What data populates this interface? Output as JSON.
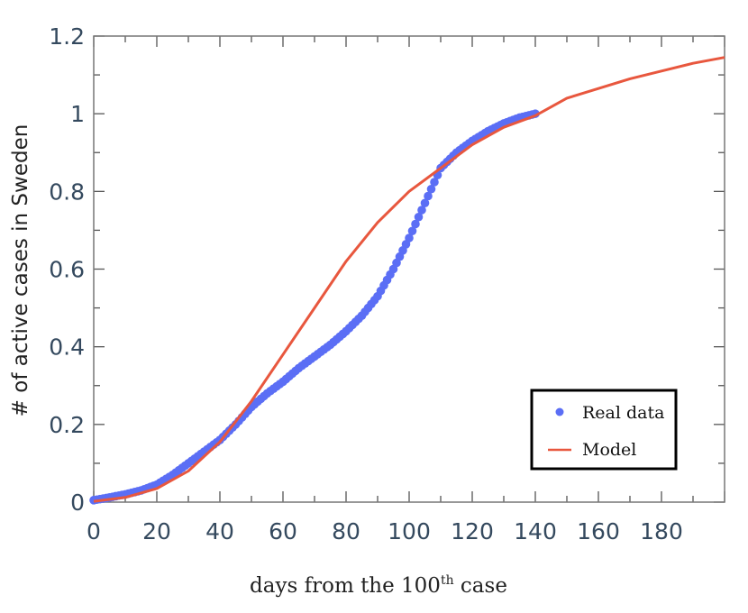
{
  "chart_data": {
    "type": "line",
    "xlabel": "days from the 100",
    "xlabel_sup": "th",
    "xlabel_suffix": " case",
    "ylabel": "# of active cases in Sweden",
    "xlim": [
      0,
      200
    ],
    "ylim": [
      0,
      1.2
    ],
    "x_ticks": [
      0,
      20,
      40,
      60,
      80,
      100,
      120,
      140,
      160,
      180
    ],
    "x_tick_labels": [
      "0",
      "20",
      "40",
      "60",
      "80",
      "100",
      "120",
      "140",
      "160",
      "180"
    ],
    "y_ticks": [
      0,
      0.2,
      0.4,
      0.6,
      0.8,
      1.0,
      1.2
    ],
    "y_tick_labels": [
      "0",
      "0.2",
      "0.4",
      "0.6",
      "0.8",
      "1",
      "1.2"
    ],
    "legend_position": "lower-right",
    "series": [
      {
        "name": "Real data",
        "kind": "scatter",
        "color": "#5b6ef5",
        "points": [
          [
            0,
            0.005
          ],
          [
            5,
            0.012
          ],
          [
            10,
            0.02
          ],
          [
            15,
            0.03
          ],
          [
            20,
            0.045
          ],
          [
            25,
            0.07
          ],
          [
            30,
            0.1
          ],
          [
            35,
            0.13
          ],
          [
            40,
            0.16
          ],
          [
            45,
            0.2
          ],
          [
            50,
            0.245
          ],
          [
            55,
            0.28
          ],
          [
            60,
            0.31
          ],
          [
            65,
            0.345
          ],
          [
            70,
            0.375
          ],
          [
            75,
            0.405
          ],
          [
            80,
            0.44
          ],
          [
            85,
            0.48
          ],
          [
            90,
            0.53
          ],
          [
            95,
            0.6
          ],
          [
            100,
            0.68
          ],
          [
            105,
            0.77
          ],
          [
            110,
            0.86
          ],
          [
            115,
            0.9
          ],
          [
            120,
            0.93
          ],
          [
            125,
            0.955
          ],
          [
            130,
            0.975
          ],
          [
            135,
            0.99
          ],
          [
            140,
            1.0
          ]
        ]
      },
      {
        "name": "Model",
        "kind": "line",
        "color": "#e8573e",
        "points": [
          [
            0,
            0.002
          ],
          [
            10,
            0.012
          ],
          [
            20,
            0.035
          ],
          [
            30,
            0.08
          ],
          [
            40,
            0.155
          ],
          [
            50,
            0.26
          ],
          [
            60,
            0.38
          ],
          [
            70,
            0.5
          ],
          [
            80,
            0.62
          ],
          [
            90,
            0.72
          ],
          [
            100,
            0.8
          ],
          [
            110,
            0.86
          ],
          [
            120,
            0.92
          ],
          [
            130,
            0.965
          ],
          [
            140,
            0.995
          ],
          [
            150,
            1.04
          ],
          [
            160,
            1.065
          ],
          [
            170,
            1.09
          ],
          [
            180,
            1.11
          ],
          [
            190,
            1.13
          ],
          [
            200,
            1.145
          ]
        ]
      }
    ]
  }
}
